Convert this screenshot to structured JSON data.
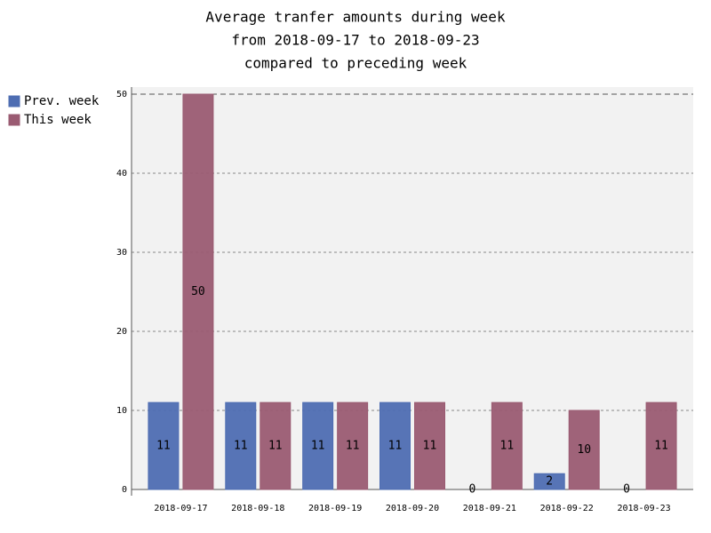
{
  "chart_data": {
    "type": "bar",
    "title": [
      "Average tranfer amounts during week",
      "from 2018-09-17 to 2018-09-23",
      "compared to preceding week"
    ],
    "categories": [
      "2018-09-17",
      "2018-09-18",
      "2018-09-19",
      "2018-09-20",
      "2018-09-21",
      "2018-09-22",
      "2018-09-23"
    ],
    "series": [
      {
        "name": "Prev. week",
        "color": "#4e6db2",
        "values": [
          11,
          11,
          11,
          11,
          0,
          2,
          0
        ]
      },
      {
        "name": "This week",
        "color": "#9a5b72",
        "values": [
          50,
          11,
          11,
          11,
          11,
          10,
          11
        ]
      }
    ],
    "ylim": [
      0,
      50
    ],
    "yticks": [
      0,
      10,
      20,
      30,
      40,
      50
    ],
    "grid": true,
    "legend": "top-left"
  }
}
